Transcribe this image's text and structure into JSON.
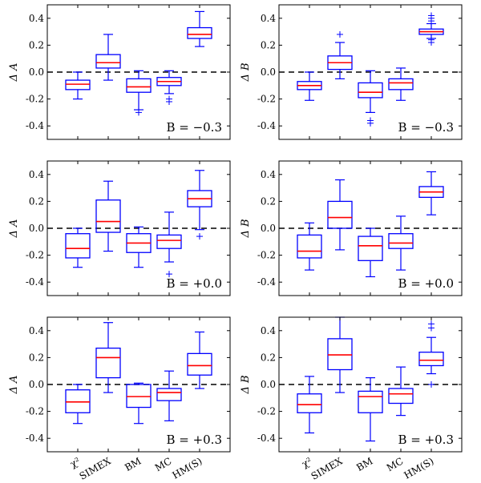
{
  "chart_data": {
    "type": "box",
    "categories": [
      "χ²",
      "SIMEX",
      "BM",
      "MC",
      "HM(S)"
    ],
    "ylim": [
      -0.5,
      0.5
    ],
    "yticks": [
      0.4,
      0.2,
      0.0,
      -0.2,
      -0.4
    ],
    "ytick_labels": [
      "0.4",
      "0.2",
      "0.0",
      "-0.2",
      "-0.4"
    ],
    "reference_line": 0.0,
    "grid": false,
    "colors": {
      "box": "#0000ff",
      "median": "#ff0000",
      "reference": "#000000",
      "outlier": "#0000ff"
    },
    "panels": [
      {
        "ylabel": "Δ A",
        "annotation": "B = −0.3",
        "boxes": [
          {
            "whislo": -0.2,
            "q1": -0.13,
            "med": -0.09,
            "q3": -0.06,
            "whishi": 0.0,
            "fliers": []
          },
          {
            "whislo": -0.06,
            "q1": 0.03,
            "med": 0.07,
            "q3": 0.13,
            "whishi": 0.28,
            "fliers": []
          },
          {
            "whislo": -0.28,
            "q1": -0.15,
            "med": -0.11,
            "q3": -0.05,
            "whishi": 0.01,
            "fliers": [
              -0.3
            ]
          },
          {
            "whislo": -0.16,
            "q1": -0.1,
            "med": -0.07,
            "q3": -0.04,
            "whishi": 0.01,
            "fliers": [
              -0.2,
              -0.22
            ]
          },
          {
            "whislo": 0.19,
            "q1": 0.25,
            "med": 0.28,
            "q3": 0.33,
            "whishi": 0.45,
            "fliers": []
          }
        ]
      },
      {
        "ylabel": "Δ B",
        "annotation": "B = −0.3",
        "boxes": [
          {
            "whislo": -0.21,
            "q1": -0.13,
            "med": -0.1,
            "q3": -0.07,
            "whishi": 0.0,
            "fliers": []
          },
          {
            "whislo": -0.05,
            "q1": 0.02,
            "med": 0.07,
            "q3": 0.12,
            "whishi": 0.22,
            "fliers": [
              0.28
            ]
          },
          {
            "whislo": -0.3,
            "q1": -0.19,
            "med": -0.15,
            "q3": -0.08,
            "whishi": 0.01,
            "fliers": [
              -0.36,
              -0.38
            ]
          },
          {
            "whislo": -0.21,
            "q1": -0.13,
            "med": -0.08,
            "q3": -0.05,
            "whishi": 0.03,
            "fliers": []
          },
          {
            "whislo": 0.25,
            "q1": 0.28,
            "med": 0.3,
            "q3": 0.32,
            "whishi": 0.36,
            "fliers": [
              0.22,
              0.24,
              0.38,
              0.4,
              0.42
            ]
          }
        ]
      },
      {
        "ylabel": "Δ A",
        "annotation": "B = +0.0",
        "boxes": [
          {
            "whislo": -0.29,
            "q1": -0.22,
            "med": -0.15,
            "q3": -0.04,
            "whishi": 0.0,
            "fliers": []
          },
          {
            "whislo": -0.17,
            "q1": -0.03,
            "med": 0.05,
            "q3": 0.21,
            "whishi": 0.35,
            "fliers": []
          },
          {
            "whislo": -0.29,
            "q1": -0.18,
            "med": -0.11,
            "q3": -0.04,
            "whishi": 0.01,
            "fliers": []
          },
          {
            "whislo": -0.25,
            "q1": -0.15,
            "med": -0.09,
            "q3": -0.05,
            "whishi": 0.12,
            "fliers": [
              -0.34
            ]
          },
          {
            "whislo": -0.01,
            "q1": 0.16,
            "med": 0.22,
            "q3": 0.28,
            "whishi": 0.43,
            "fliers": [
              -0.06
            ]
          }
        ]
      },
      {
        "ylabel": "Δ B",
        "annotation": "B = +0.0",
        "boxes": [
          {
            "whislo": -0.31,
            "q1": -0.22,
            "med": -0.17,
            "q3": -0.05,
            "whishi": 0.04,
            "fliers": []
          },
          {
            "whislo": -0.16,
            "q1": 0.0,
            "med": 0.08,
            "q3": 0.2,
            "whishi": 0.36,
            "fliers": []
          },
          {
            "whislo": -0.36,
            "q1": -0.24,
            "med": -0.13,
            "q3": -0.06,
            "whishi": 0.0,
            "fliers": []
          },
          {
            "whislo": -0.31,
            "q1": -0.15,
            "med": -0.11,
            "q3": -0.04,
            "whishi": 0.09,
            "fliers": []
          },
          {
            "whislo": 0.1,
            "q1": 0.23,
            "med": 0.27,
            "q3": 0.31,
            "whishi": 0.42,
            "fliers": []
          }
        ]
      },
      {
        "ylabel": "Δ A",
        "annotation": "B = +0.3",
        "boxes": [
          {
            "whislo": -0.29,
            "q1": -0.21,
            "med": -0.13,
            "q3": -0.04,
            "whishi": 0.0,
            "fliers": []
          },
          {
            "whislo": -0.06,
            "q1": 0.05,
            "med": 0.2,
            "q3": 0.27,
            "whishi": 0.46,
            "fliers": []
          },
          {
            "whislo": -0.29,
            "q1": -0.17,
            "med": -0.09,
            "q3": 0.0,
            "whishi": 0.01,
            "fliers": []
          },
          {
            "whislo": -0.27,
            "q1": -0.12,
            "med": -0.06,
            "q3": -0.03,
            "whishi": 0.1,
            "fliers": []
          },
          {
            "whislo": -0.03,
            "q1": 0.07,
            "med": 0.14,
            "q3": 0.23,
            "whishi": 0.39,
            "fliers": []
          }
        ]
      },
      {
        "ylabel": "Δ B",
        "annotation": "B = +0.3",
        "boxes": [
          {
            "whislo": -0.36,
            "q1": -0.21,
            "med": -0.15,
            "q3": -0.07,
            "whishi": 0.06,
            "fliers": []
          },
          {
            "whislo": -0.06,
            "q1": 0.11,
            "med": 0.22,
            "q3": 0.34,
            "whishi": 0.5,
            "fliers": []
          },
          {
            "whislo": -0.42,
            "q1": -0.21,
            "med": -0.09,
            "q3": -0.05,
            "whishi": 0.05,
            "fliers": []
          },
          {
            "whislo": -0.23,
            "q1": -0.14,
            "med": -0.07,
            "q3": -0.03,
            "whishi": 0.13,
            "fliers": []
          },
          {
            "whislo": 0.08,
            "q1": 0.14,
            "med": 0.18,
            "q3": 0.24,
            "whishi": 0.35,
            "fliers": [
              0.0,
              0.42,
              0.45
            ]
          }
        ]
      }
    ]
  }
}
